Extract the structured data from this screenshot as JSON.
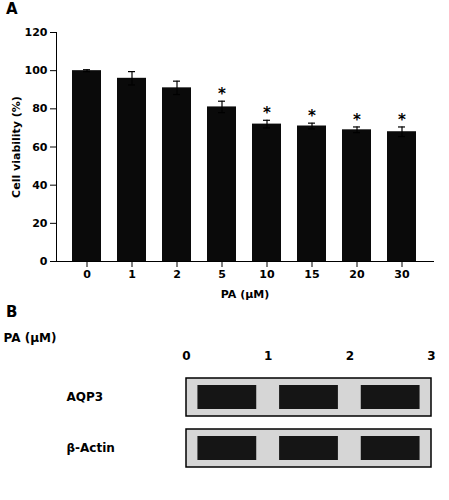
{
  "chart_data": [
    {
      "type": "bar",
      "title": "A",
      "categories": [
        "0",
        "1",
        "2",
        "5",
        "10",
        "15",
        "20",
        "30"
      ],
      "values": [
        100,
        96,
        91,
        81,
        72,
        71,
        69,
        68
      ],
      "errors": [
        0.5,
        3.5,
        3.5,
        3.0,
        2.0,
        1.5,
        1.5,
        2.5
      ],
      "color": "#0a0a0a",
      "xlabel": "PA (μM)",
      "ylabel": "Cell viability (%)",
      "ylim": [
        0,
        120
      ],
      "yticks": [
        0,
        20,
        40,
        60,
        80,
        100,
        120
      ],
      "annotations": [
        {
          "text": "*",
          "category": "5"
        },
        {
          "text": "*",
          "category": "10"
        },
        {
          "text": "*",
          "category": "15"
        },
        {
          "text": "*",
          "category": "20"
        },
        {
          "text": "*",
          "category": "30"
        }
      ]
    },
    {
      "type": "blot",
      "title": "B",
      "xlabel": "PA (μM)",
      "categories": [
        "0",
        "1",
        "2"
      ],
      "series": [
        {
          "name": "AQP3"
        },
        {
          "name": "β-Actin"
        }
      ]
    }
  ]
}
